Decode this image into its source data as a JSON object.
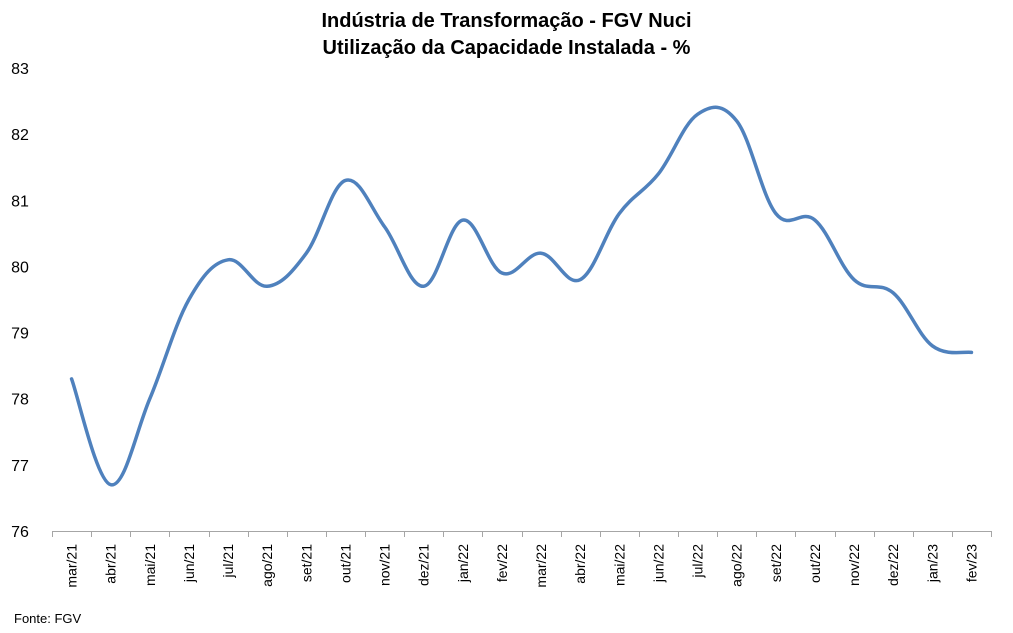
{
  "chart_data": {
    "type": "line",
    "title": "Indústria de Transformação - FGV Nuci",
    "subtitle": "Utilização da Capacidade Instalada - %",
    "source": "Fonte: FGV",
    "categories": [
      "mar/21",
      "abr/21",
      "mai/21",
      "jun/21",
      "jul/21",
      "ago/21",
      "set/21",
      "out/21",
      "nov/21",
      "dez/21",
      "jan/22",
      "fev/22",
      "mar/22",
      "abr/22",
      "mai/22",
      "jun/22",
      "jul/22",
      "ago/22",
      "set/22",
      "out/22",
      "nov/22",
      "dez/22",
      "jan/23",
      "fev/23"
    ],
    "series": [
      {
        "values": [
          78.3,
          76.7,
          78.0,
          79.5,
          80.1,
          79.7,
          80.2,
          81.3,
          80.6,
          79.7,
          80.7,
          79.9,
          80.2,
          79.8,
          80.8,
          81.4,
          82.3,
          82.2,
          80.8,
          80.7,
          79.8,
          79.6,
          78.8,
          78.7
        ],
        "color": "#4f81bd"
      }
    ],
    "ylim": [
      76,
      83
    ],
    "yticks": [
      "76",
      "77",
      "78",
      "79",
      "80",
      "81",
      "82",
      "83"
    ],
    "grid": false,
    "legend": "none"
  }
}
